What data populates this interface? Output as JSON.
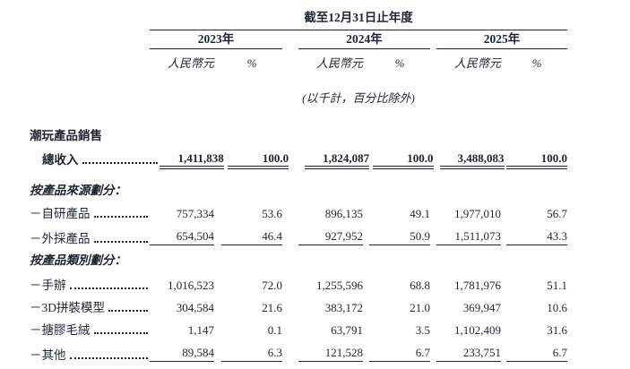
{
  "colors": {
    "text": "#1e2433",
    "background": "#ffffff"
  },
  "document": {
    "period_header": "截至12月31日止年度",
    "years": [
      {
        "label": "2023年"
      },
      {
        "label": "2024年"
      },
      {
        "label": "2025年"
      }
    ],
    "unit_currency": "人民幣元",
    "unit_percent": "%",
    "units_note": "(以千計，百分比除外)"
  },
  "table": {
    "rows": [
      {
        "type": "group-label",
        "label": "潮玩產品銷售"
      },
      {
        "type": "total",
        "label": "總收入",
        "values": [
          "1,411,838",
          "100.0",
          "1,824,087",
          "100.0",
          "3,488,083",
          "100.0"
        ]
      },
      {
        "type": "section",
        "label": "按產品來源劃分："
      },
      {
        "type": "item",
        "label": "－自研產品",
        "values": [
          "757,334",
          "53.6",
          "896,135",
          "49.1",
          "1,977,010",
          "56.7"
        ]
      },
      {
        "type": "item",
        "label": "－外採產品",
        "values": [
          "654,504",
          "46.4",
          "927,952",
          "50.9",
          "1,511,073",
          "43.3"
        ]
      },
      {
        "type": "section",
        "label": "按產品類別劃分："
      },
      {
        "type": "item",
        "label": "－手辦",
        "values": [
          "1,016,523",
          "72.0",
          "1,255,596",
          "68.8",
          "1,781,976",
          "51.1"
        ]
      },
      {
        "type": "item",
        "label": "－3D拼裝模型",
        "values": [
          "304,584",
          "21.6",
          "383,172",
          "21.0",
          "369,947",
          "10.6"
        ]
      },
      {
        "type": "item",
        "label": "－搪膠毛絨",
        "values": [
          "1,147",
          "0.1",
          "63,791",
          "3.5",
          "1,102,409",
          "31.6"
        ]
      },
      {
        "type": "item",
        "label": "－其他",
        "values": [
          "89,584",
          "6.3",
          "121,528",
          "6.7",
          "233,751",
          "6.7"
        ]
      }
    ]
  }
}
